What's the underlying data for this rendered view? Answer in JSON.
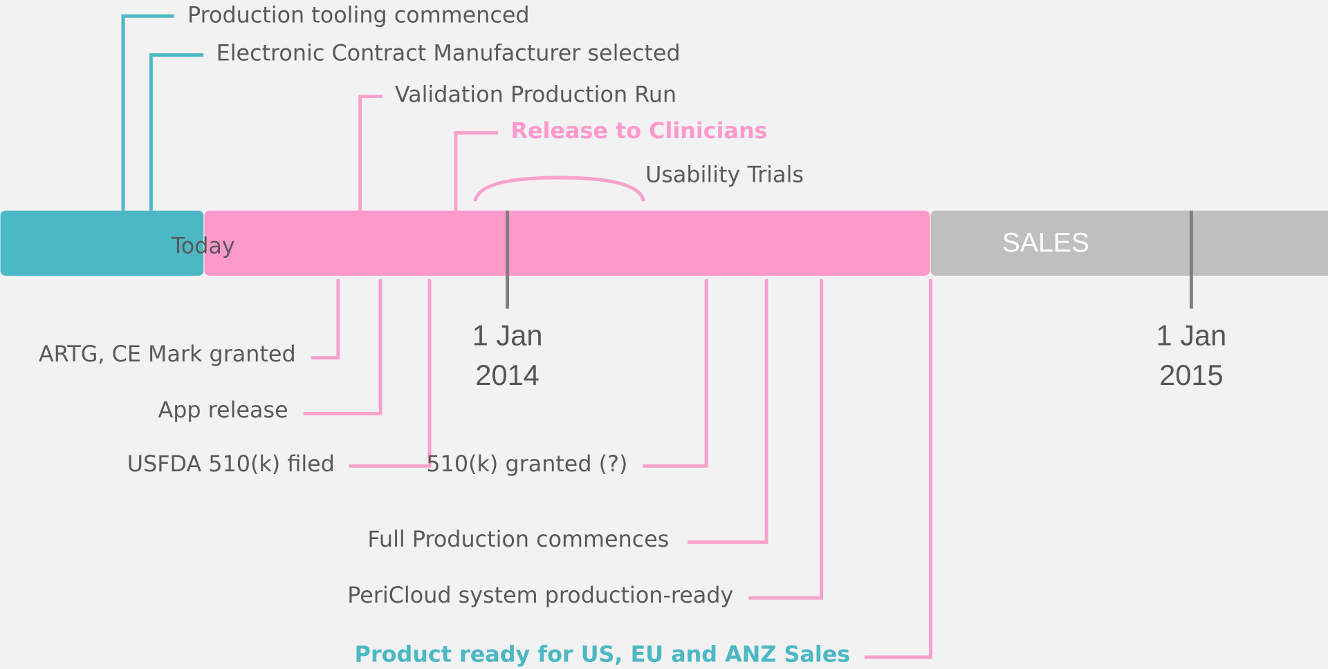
{
  "timeline": {
    "today": "Today",
    "sales": "SALES",
    "dates": [
      {
        "day": "1 Jan",
        "year": "2014"
      },
      {
        "day": "1 Jan",
        "year": "2015"
      }
    ],
    "above": [
      "Production tooling commenced",
      "Electronic Contract Manufacturer selected",
      "Validation Production Run",
      "Release to Clinicians",
      "Usability Trials"
    ],
    "below": [
      "ARTG, CE Mark granted",
      "App release",
      "USFDA 510(k) filed",
      "510(k) granted (?)",
      "Full Production commences",
      "PeriCloud system production-ready",
      "Product ready for US, EU and ANZ Sales"
    ]
  }
}
